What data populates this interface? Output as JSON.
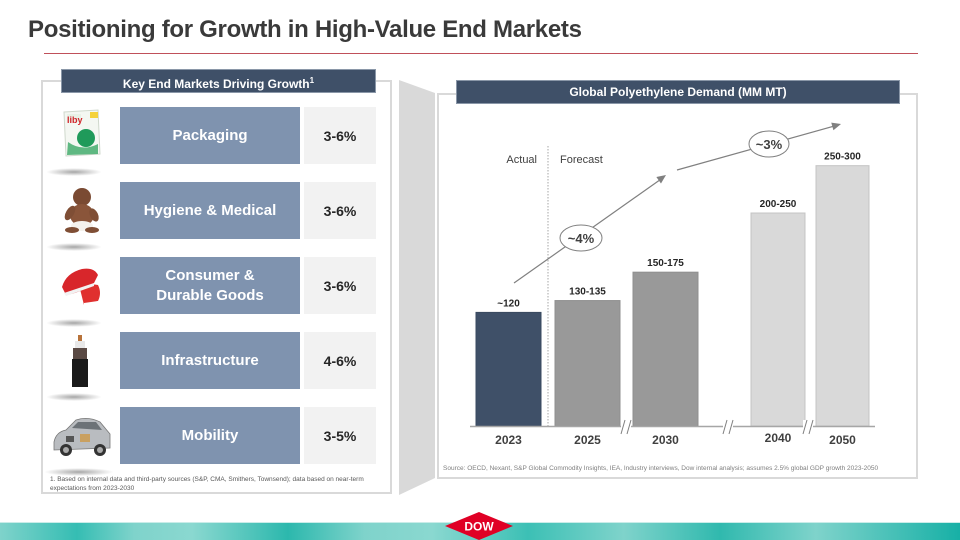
{
  "page": {
    "title": "Positioning for Growth in High-Value End Markets"
  },
  "left_panel": {
    "header": "Key End Markets Driving Growth",
    "header_superscript": "1",
    "markets": [
      {
        "label": "Packaging",
        "rate": "3-6%",
        "image": "detergent-pouch-image"
      },
      {
        "label": "Hygiene & Medical",
        "rate": "3-6%",
        "image": "baby-image"
      },
      {
        "label": "Consumer & Durable Goods",
        "rate": "3-6%",
        "image": "sneakers-image"
      },
      {
        "label": "Infrastructure",
        "rate": "4-6%",
        "image": "cable-image"
      },
      {
        "label": "Mobility",
        "rate": "3-5%",
        "image": "car-cutaway-image"
      }
    ],
    "footnote": "1. Based on internal data and third-party sources (S&P, CMA, Smithers, Townsend); data based on near-term expectations from 2023-2030"
  },
  "right_panel": {
    "header": "Global Polyethylene Demand (MM MT)",
    "source": "Source: OECD, Nexant, S&P Global Commodity Insights, IEA, Industry interviews, Dow internal analysis; assumes 2.5% global GDP growth 2023-2050"
  },
  "chart_data": {
    "type": "bar",
    "title": "Global Polyethylene Demand (MM MT)",
    "xlabel": "",
    "ylabel": "",
    "categories": [
      "2023",
      "2025",
      "2030",
      "2040",
      "2050"
    ],
    "values": [
      120,
      132.5,
      162.5,
      225,
      275
    ],
    "data_labels": [
      "~120",
      "130-135",
      "150-175",
      "200-250",
      "250-300"
    ],
    "phase": [
      "actual",
      "forecast",
      "forecast",
      "forecast",
      "forecast"
    ],
    "ylim": [
      0,
      300
    ],
    "grid": false,
    "axis_breaks_after": [
      "2025",
      "2030",
      "2040"
    ],
    "annotations": [
      {
        "text": "Actual",
        "type": "section-label"
      },
      {
        "text": "Forecast",
        "type": "section-label"
      },
      {
        "text": "~4%",
        "type": "growth-arrow",
        "from": "2023",
        "to": "2030"
      },
      {
        "text": "~3%",
        "type": "growth-arrow",
        "from": "2030",
        "to": "2050"
      }
    ],
    "colors": {
      "actual": "#3f5068",
      "near_forecast": "#999999",
      "long_forecast": "#d9d9d9"
    }
  },
  "brand": {
    "logo_text": "DOW",
    "logo_color": "#e00025"
  }
}
